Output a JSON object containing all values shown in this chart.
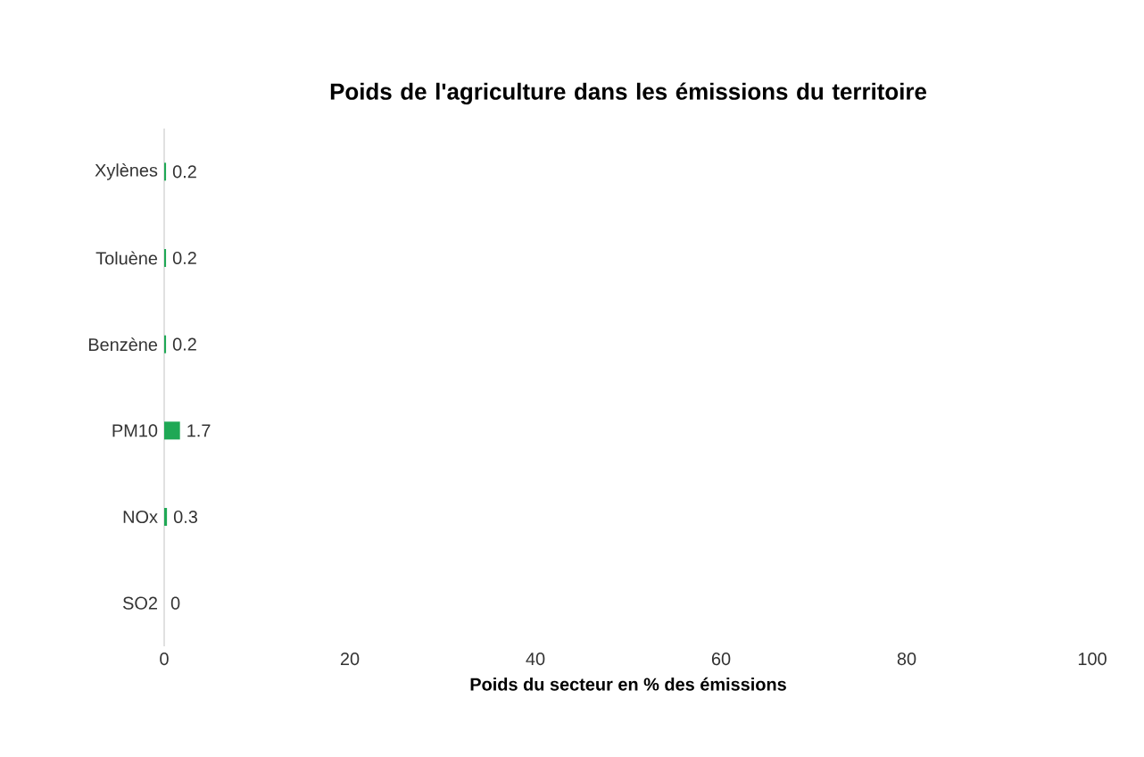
{
  "chart_data": {
    "type": "bar",
    "orientation": "horizontal",
    "title": "Poids de l'agriculture dans les émissions du territoire",
    "xlabel": "Poids du secteur en % des émissions",
    "categories": [
      "Xylènes",
      "Toluène",
      "Benzène",
      "PM10",
      "NOx",
      "SO2"
    ],
    "values": [
      0.2,
      0.2,
      0.2,
      1.7,
      0.3,
      0
    ],
    "color": "#1fa855",
    "xlim": [
      0,
      100
    ],
    "xticks": [
      0,
      20,
      40,
      60,
      80,
      100
    ],
    "data_labels": true
  }
}
